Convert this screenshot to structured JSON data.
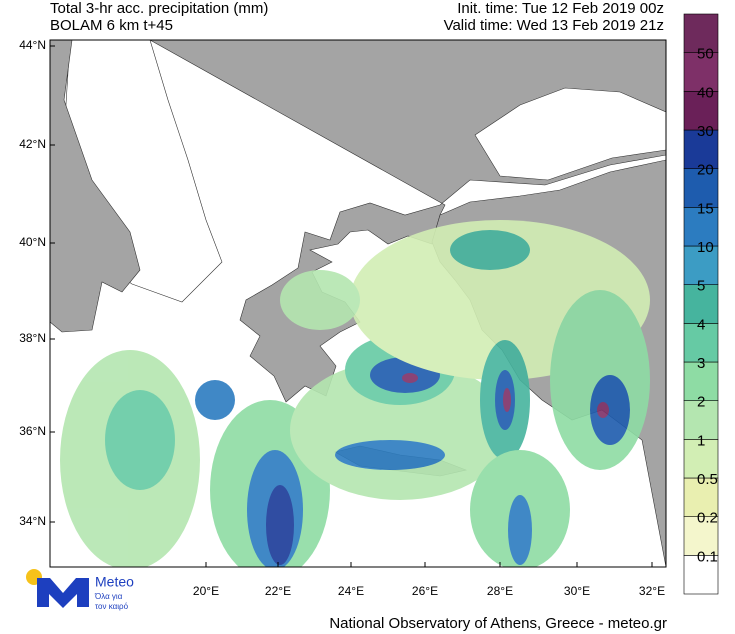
{
  "header": {
    "title": "Total 3-hr acc. precipitation (mm)",
    "model": "BOLAM 6 km t+45",
    "init_time": "Init. time: Tue 12 Feb 2019 00z",
    "valid_time": "Valid time: Wed 13 Feb 2019 21z"
  },
  "map": {
    "lat_labels": [
      "44°N",
      "42°N",
      "40°N",
      "38°N",
      "36°N",
      "34°N"
    ],
    "lon_labels": [
      "20°E",
      "22°E",
      "24°E",
      "26°E",
      "28°E",
      "30°E",
      "32°E"
    ]
  },
  "colorbar": {
    "levels": [
      0.1,
      0.2,
      0.5,
      1,
      2,
      3,
      4,
      5,
      10,
      15,
      20,
      30,
      40,
      50
    ],
    "colors": [
      "#ffffff",
      "#f4f6cc",
      "#e9efb0",
      "#d2eeb4",
      "#b4e6b0",
      "#8edca4",
      "#66caa4",
      "#46b49e",
      "#3c9cc4",
      "#2c7cc0",
      "#1e5cae",
      "#1a3a98",
      "#6a2058",
      "#7e3068",
      "#6e2a5c"
    ]
  },
  "logo": {
    "name": "Meteo",
    "tagline": [
      "Όλα για",
      "τον καιρό"
    ]
  },
  "footer": "National Observatory of Athens, Greece - meteo.gr"
}
